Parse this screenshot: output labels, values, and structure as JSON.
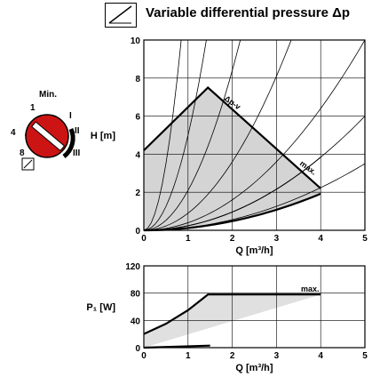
{
  "title": "Variable differential pressure Δp",
  "icons": {
    "title": "variable-pressure-icon",
    "mode": "variable-pressure-icon",
    "knob": "control-knob-icon"
  },
  "colors": {
    "knob": "#cc1414",
    "area": "#d4d4d4",
    "grid": "#000000"
  },
  "knob": {
    "labels": [
      "Min.",
      "1",
      "4",
      "8",
      "I",
      "II",
      "III"
    ]
  },
  "chart_data": [
    {
      "type": "line",
      "title": "",
      "xlabel": "Q [m³/h]",
      "ylabel": "H [m]",
      "xlim": [
        0,
        5
      ],
      "ylim": [
        0,
        10
      ],
      "xticks": [
        "0",
        "1",
        "2",
        "3",
        "4",
        "5"
      ],
      "yticks": [
        "0",
        "2",
        "4",
        "6",
        "8",
        "10"
      ],
      "grid": true,
      "annotations": [
        "Δp-v",
        "max."
      ],
      "series": [
        {
          "name": "Δp-v",
          "x": [
            0,
            1.45,
            4.0
          ],
          "y": [
            4.2,
            7.5,
            2.2
          ]
        },
        {
          "name": "max.",
          "x": [
            0,
            0.5,
            1.0,
            1.5,
            2.0,
            2.5,
            3.0,
            3.5,
            4.0
          ],
          "y": [
            0,
            0.06,
            0.24,
            0.54,
            0.96,
            1.5,
            2.16,
            2.94,
            3.84
          ]
        },
        {
          "name": "",
          "x": [
            0,
            1.0,
            2.0,
            3.0,
            4.0
          ],
          "y": [
            0,
            0.12,
            0.48,
            1.08,
            1.92
          ]
        }
      ],
      "system_curve_coefficients": [
        14,
        5,
        2.1,
        0.9,
        0.4,
        0.24,
        0.14
      ]
    },
    {
      "type": "line",
      "title": "",
      "xlabel": "Q [m³/h]",
      "ylabel": "P₁ [W]",
      "xlim": [
        0,
        5
      ],
      "ylim": [
        0,
        120
      ],
      "xticks": [
        "0",
        "1",
        "2",
        "3",
        "4",
        "5"
      ],
      "yticks": [
        "0",
        "40",
        "80",
        "120"
      ],
      "grid": true,
      "annotations": [
        "max."
      ],
      "series": [
        {
          "name": "max.",
          "x": [
            0,
            0.5,
            1.0,
            1.45,
            4.0
          ],
          "y": [
            20,
            35,
            55,
            78,
            78
          ]
        },
        {
          "name": "",
          "x": [
            0,
            1.5
          ],
          "y": [
            0,
            3
          ]
        }
      ]
    }
  ]
}
